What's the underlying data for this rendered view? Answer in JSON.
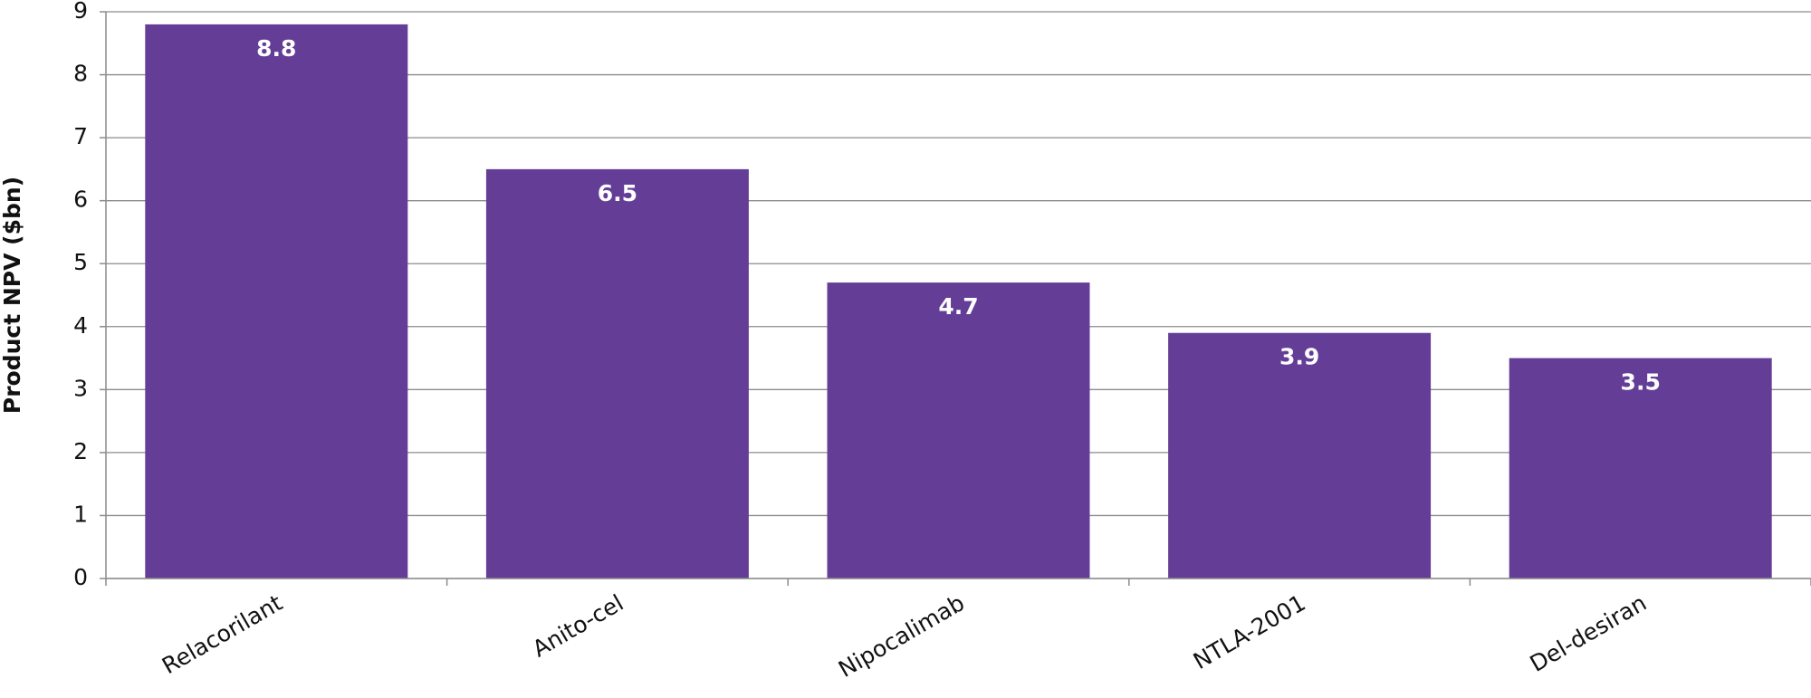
{
  "chart_data": {
    "type": "bar",
    "y_label": "Product NPV  ($bn)",
    "categories": [
      "Relacorilant",
      "Anito-cel",
      "Nipocalimab",
      "NTLA-2001",
      "Del-desiran"
    ],
    "values": [
      8.8,
      6.5,
      4.7,
      3.9,
      3.5
    ],
    "color": "#643e96",
    "ylim": [
      0,
      9
    ],
    "yticks": [
      0,
      1,
      2,
      3,
      4,
      5,
      6,
      7,
      8,
      9
    ],
    "grid": true
  }
}
